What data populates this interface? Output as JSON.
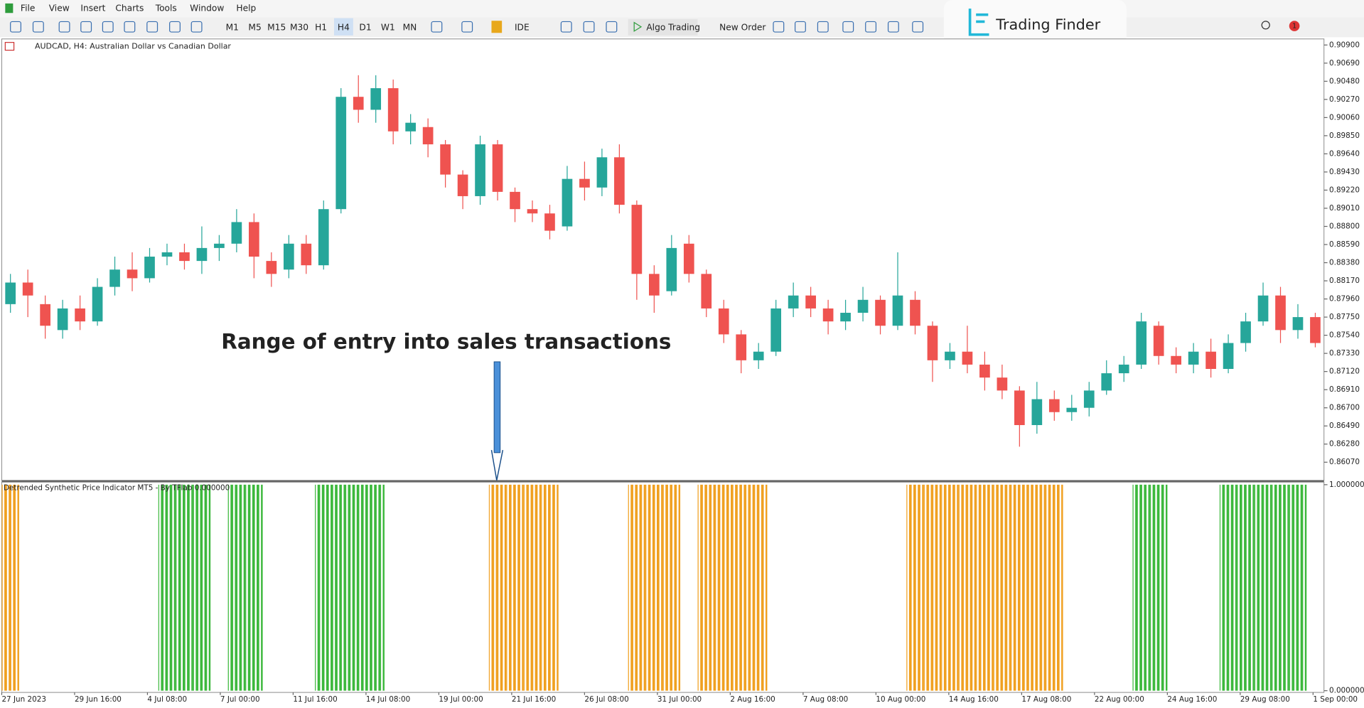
{
  "ui": {
    "menu": [
      "File",
      "View",
      "Insert",
      "Charts",
      "Tools",
      "Window",
      "Help"
    ],
    "timeframes": [
      "M1",
      "M5",
      "M15",
      "M30",
      "H1",
      "H4",
      "D1",
      "W1",
      "MN"
    ],
    "ide": "IDE",
    "algo_trading": "Algo Trading",
    "new_order": "New Order",
    "brand": "Trading Finder",
    "badge": "1"
  },
  "chart_data": [
    {
      "type": "candlestick",
      "title": "AUDCAD, H4:  Australian Dollar vs Canadian Dollar",
      "annotation": "Range of entry into sales transactions",
      "up_color": "#26a69a",
      "down_color": "#ef5350",
      "open": [
        0.879,
        0.8815,
        0.879,
        0.876,
        0.8785,
        0.877,
        0.881,
        0.883,
        0.882,
        0.8845,
        0.885,
        0.884,
        0.8855,
        0.886,
        0.8885,
        0.884,
        0.883,
        0.886,
        0.8835,
        0.89,
        0.903,
        0.9015,
        0.904,
        0.899,
        0.8995,
        0.8975,
        0.894,
        0.8915,
        0.8975,
        0.892,
        0.89,
        0.8895,
        0.888,
        0.8935,
        0.8925,
        0.896,
        0.8905,
        0.8825,
        0.8805,
        0.886,
        0.8825,
        0.8785,
        0.8755,
        0.8725,
        0.8735,
        0.8785,
        0.88,
        0.8785,
        0.877,
        0.878,
        0.8795,
        0.8765,
        0.8795,
        0.8765,
        0.8725,
        0.8735,
        0.872,
        0.8705,
        0.869,
        0.865,
        0.868,
        0.8665,
        0.867,
        0.869,
        0.871,
        0.872,
        0.8765,
        0.873,
        0.872,
        0.8735,
        0.8715,
        0.8745,
        0.877,
        0.88,
        0.876,
        0.8775
      ],
      "high": [
        0.8825,
        0.883,
        0.88,
        0.8795,
        0.88,
        0.882,
        0.8845,
        0.885,
        0.8855,
        0.886,
        0.886,
        0.888,
        0.887,
        0.89,
        0.8895,
        0.885,
        0.887,
        0.887,
        0.891,
        0.904,
        0.9055,
        0.9055,
        0.905,
        0.901,
        0.9005,
        0.898,
        0.8945,
        0.8985,
        0.898,
        0.8925,
        0.891,
        0.8905,
        0.895,
        0.8955,
        0.897,
        0.8975,
        0.891,
        0.8835,
        0.887,
        0.887,
        0.883,
        0.8795,
        0.876,
        0.8745,
        0.8795,
        0.8815,
        0.881,
        0.8795,
        0.8795,
        0.881,
        0.88,
        0.885,
        0.8805,
        0.877,
        0.8745,
        0.8765,
        0.8735,
        0.872,
        0.8695,
        0.87,
        0.869,
        0.8685,
        0.87,
        0.8725,
        0.873,
        0.878,
        0.877,
        0.874,
        0.8745,
        0.875,
        0.8755,
        0.878,
        0.8815,
        0.881,
        0.879,
        0.878
      ],
      "low": [
        0.878,
        0.8775,
        0.875,
        0.875,
        0.876,
        0.8765,
        0.88,
        0.8805,
        0.8815,
        0.8835,
        0.883,
        0.8825,
        0.884,
        0.885,
        0.882,
        0.881,
        0.882,
        0.8825,
        0.883,
        0.8895,
        0.9,
        0.9,
        0.8975,
        0.8975,
        0.896,
        0.8925,
        0.89,
        0.8905,
        0.891,
        0.8885,
        0.8885,
        0.8865,
        0.8875,
        0.891,
        0.8915,
        0.8895,
        0.8795,
        0.878,
        0.88,
        0.8815,
        0.8775,
        0.8745,
        0.871,
        0.8715,
        0.873,
        0.8775,
        0.8775,
        0.8755,
        0.876,
        0.877,
        0.8755,
        0.876,
        0.8755,
        0.87,
        0.8715,
        0.871,
        0.869,
        0.868,
        0.8625,
        0.864,
        0.8655,
        0.8655,
        0.866,
        0.8685,
        0.87,
        0.8715,
        0.872,
        0.871,
        0.871,
        0.8705,
        0.871,
        0.8735,
        0.8765,
        0.8745,
        0.875,
        0.874
      ],
      "close": [
        0.8815,
        0.88,
        0.8765,
        0.8785,
        0.877,
        0.881,
        0.883,
        0.882,
        0.8845,
        0.885,
        0.884,
        0.8855,
        0.886,
        0.8885,
        0.8845,
        0.8825,
        0.886,
        0.8835,
        0.89,
        0.903,
        0.9015,
        0.904,
        0.899,
        0.9,
        0.8975,
        0.894,
        0.8915,
        0.8975,
        0.892,
        0.89,
        0.8895,
        0.8875,
        0.8935,
        0.8925,
        0.896,
        0.8905,
        0.8825,
        0.88,
        0.8855,
        0.8825,
        0.8785,
        0.8755,
        0.8725,
        0.8735,
        0.8785,
        0.88,
        0.8785,
        0.877,
        0.878,
        0.8795,
        0.8765,
        0.88,
        0.8765,
        0.8725,
        0.8735,
        0.872,
        0.8705,
        0.869,
        0.865,
        0.868,
        0.8665,
        0.867,
        0.869,
        0.871,
        0.872,
        0.877,
        0.873,
        0.872,
        0.8735,
        0.8715,
        0.8745,
        0.877,
        0.88,
        0.876,
        0.8775,
        0.8745
      ],
      "ylim": [
        0.8586,
        0.9097
      ],
      "yticks": [
        {
          "value": 0.909,
          "label": "0.90900"
        },
        {
          "value": 0.9069,
          "label": "0.90690"
        },
        {
          "value": 0.9048,
          "label": "0.90480"
        },
        {
          "value": 0.9027,
          "label": "0.90270"
        },
        {
          "value": 0.9006,
          "label": "0.90060"
        },
        {
          "value": 0.8985,
          "label": "0.89850"
        },
        {
          "value": 0.8964,
          "label": "0.89640"
        },
        {
          "value": 0.8943,
          "label": "0.89430"
        },
        {
          "value": 0.8922,
          "label": "0.89220"
        },
        {
          "value": 0.8901,
          "label": "0.89010"
        },
        {
          "value": 0.888,
          "label": "0.88800"
        },
        {
          "value": 0.8859,
          "label": "0.88590"
        },
        {
          "value": 0.8838,
          "label": "0.88380"
        },
        {
          "value": 0.8817,
          "label": "0.88170"
        },
        {
          "value": 0.8796,
          "label": "0.87960"
        },
        {
          "value": 0.8775,
          "label": "0.87750"
        },
        {
          "value": 0.8754,
          "label": "0.87540"
        },
        {
          "value": 0.8733,
          "label": "0.87330"
        },
        {
          "value": 0.8712,
          "label": "0.87120"
        },
        {
          "value": 0.8691,
          "label": "0.86910"
        },
        {
          "value": 0.867,
          "label": "0.86700"
        },
        {
          "value": 0.8649,
          "label": "0.86490"
        },
        {
          "value": 0.8628,
          "label": "0.86280"
        },
        {
          "value": 0.8607,
          "label": "0.86070"
        }
      ],
      "x_tick_labels": [
        "27 Jun 2023",
        "29 Jun 16:00",
        "4 Jul 08:00",
        "7 Jul 00:00",
        "11 Jul 16:00",
        "14 Jul 08:00",
        "19 Jul 00:00",
        "21 Jul 16:00",
        "26 Jul 08:00",
        "31 Jul 00:00",
        "2 Aug 16:00",
        "7 Aug 08:00",
        "10 Aug 00:00",
        "14 Aug 16:00",
        "17 Aug 08:00",
        "22 Aug 00:00",
        "24 Aug 16:00",
        "29 Aug 08:00",
        "1 Sep 00:00"
      ]
    },
    {
      "type": "bar",
      "title": "Detrended Synthetic Price Indicator MT5 - By TFlab 0.000000",
      "ylim": [
        0,
        1
      ],
      "yticks": [
        {
          "value": 1,
          "label": "1.000000"
        },
        {
          "value": 0,
          "label": "0.000000"
        }
      ],
      "series": [
        {
          "color": "#3cb83c",
          "values": [
            null,
            null,
            null,
            null,
            null,
            null,
            null,
            null,
            null,
            1,
            1,
            1,
            null,
            1,
            1,
            null,
            null,
            null,
            1,
            1,
            1,
            1,
            null,
            null,
            null,
            null,
            null,
            null,
            null,
            null,
            null,
            null,
            null,
            null,
            null,
            null,
            null,
            null,
            null,
            null,
            null,
            null,
            null,
            null,
            null,
            null,
            null,
            null,
            null,
            null,
            null,
            null,
            null,
            null,
            null,
            null,
            null,
            null,
            null,
            null,
            null,
            null,
            null,
            null,
            null,
            1,
            1,
            null,
            null,
            null,
            1,
            1,
            1,
            1,
            1,
            null
          ]
        },
        {
          "color": "#f0a020",
          "values": [
            1,
            null,
            null,
            null,
            null,
            null,
            null,
            null,
            null,
            null,
            null,
            null,
            null,
            null,
            null,
            null,
            null,
            null,
            null,
            null,
            null,
            null,
            null,
            null,
            null,
            null,
            null,
            null,
            1,
            1,
            1,
            1,
            null,
            null,
            null,
            null,
            1,
            1,
            1,
            null,
            1,
            1,
            1,
            1,
            null,
            null,
            null,
            null,
            null,
            null,
            null,
            null,
            1,
            1,
            1,
            1,
            1,
            1,
            1,
            1,
            1,
            null,
            null,
            null,
            null,
            null,
            null,
            null,
            null,
            null,
            null,
            null,
            null,
            null,
            null,
            null
          ]
        }
      ]
    }
  ]
}
